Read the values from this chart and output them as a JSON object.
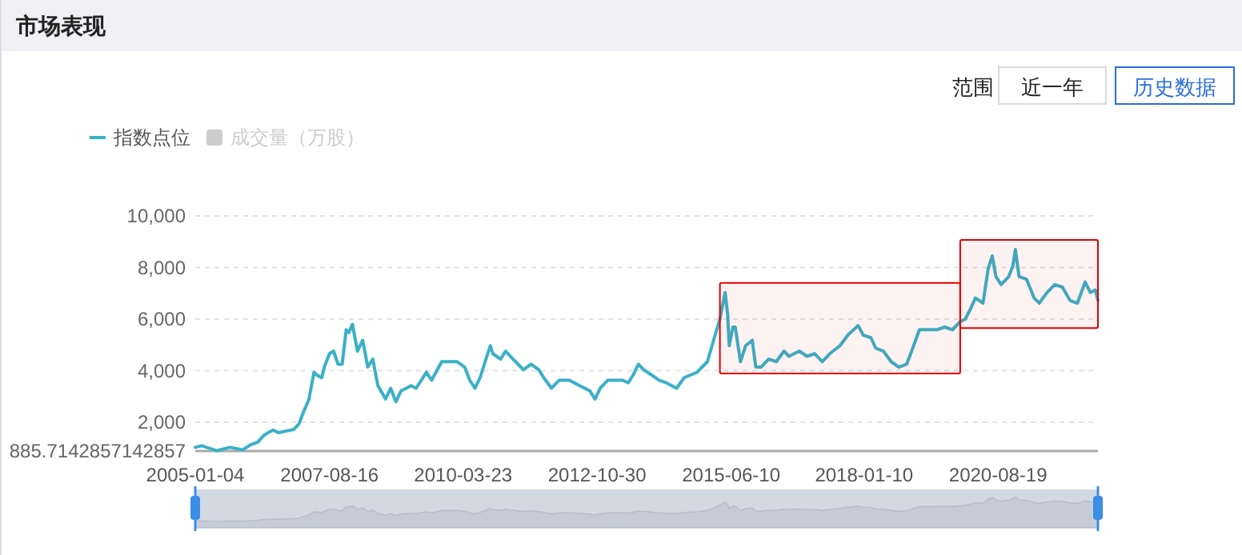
{
  "chart_data": {
    "type": "line",
    "title": "市场表现",
    "annotations": [
      "范围",
      "近一年",
      "历史数据"
    ],
    "x": [
      "2005-01-04",
      "2005-02-20",
      "2005-06-08",
      "2005-09-07",
      "2005-12-07",
      "2006-02-01",
      "2006-03-25",
      "2006-04-30",
      "2006-06-06",
      "2006-07-12",
      "2006-08-18",
      "2006-10-30",
      "2006-12-05",
      "2007-01-11",
      "2007-02-16",
      "2007-03-22",
      "2007-04-28",
      "2007-05-16",
      "2007-06-22",
      "2007-07-10",
      "2007-08-16",
      "2007-09-14",
      "2007-10-16",
      "2007-11-14",
      "2007-12-13",
      "2008-01-01",
      "2008-01-26",
      "2008-03-02",
      "2008-04-08",
      "2008-05-14",
      "2008-06-19",
      "2008-07-25",
      "2008-09-18",
      "2008-10-24",
      "2008-11-30",
      "2009-01-06",
      "2009-02-12",
      "2009-03-18",
      "2009-04-23",
      "2009-07-05",
      "2009-08-11",
      "2009-10-22",
      "2009-12-16",
      "2010-02-09",
      "2010-04-03",
      "2010-05-09",
      "2010-06-15",
      "2010-07-21",
      "2010-10-02",
      "2010-10-20",
      "2010-12-14",
      "2011-01-19",
      "2011-03-13",
      "2011-05-25",
      "2011-07-18",
      "2011-09-11",
      "2011-10-17",
      "2011-12-11",
      "2012-02-04",
      "2012-04-16",
      "2012-06-28",
      "2012-09-09",
      "2012-10-15",
      "2012-11-21",
      "2013-01-15",
      "2013-03-08",
      "2013-05-02",
      "2013-06-08",
      "2013-07-14",
      "2013-08-20",
      "2013-09-25",
      "2013-11-19",
      "2014-01-13",
      "2014-03-06",
      "2014-05-18",
      "2014-07-11",
      "2014-10-11",
      "2014-12-23",
      "2015-02-16",
      "2015-03-22",
      "2015-04-28",
      "2015-05-16",
      "2015-05-27",
      "2015-06-22",
      "2015-07-09",
      "2015-08-15",
      "2015-09-21",
      "2015-11-07",
      "2015-12-02",
      "2016-01-08",
      "2016-03-02",
      "2016-04-26",
      "2016-06-19",
      "2016-07-25",
      "2016-10-06",
      "2016-11-30",
      "2017-01-24",
      "2017-03-18",
      "2017-05-11",
      "2017-07-23",
      "2017-09-16",
      "2017-11-28",
      "2018-01-04",
      "2018-02-27",
      "2018-04-03",
      "2018-05-27",
      "2018-07-21",
      "2018-09-14",
      "2018-11-08",
      "2018-12-14",
      "2019-02-07",
      "2019-04-19",
      "2019-06-12",
      "2019-08-06",
      "2019-09-30",
      "2019-11-24",
      "2019-12-30",
      "2020-02-05",
      "2020-03-11",
      "2020-05-04",
      "2020-06-10",
      "2020-07-09",
      "2020-08-04",
      "2020-09-10",
      "2020-11-03",
      "2020-12-02",
      "2020-12-20",
      "2021-01-15",
      "2021-03-09",
      "2021-05-02",
      "2021-06-08",
      "2021-08-02",
      "2021-09-25",
      "2021-11-19",
      "2022-01-13",
      "2022-03-06",
      "2022-04-30",
      "2022-06-06",
      "2022-07-12",
      "2022-07-30"
    ],
    "series": [
      {
        "name": "指数点位",
        "color": "#3ab0c8",
        "values": [
          1030,
          1090,
          900,
          1030,
          930,
          1130,
          1230,
          1460,
          1600,
          1700,
          1600,
          1680,
          1720,
          1940,
          2450,
          2870,
          3940,
          3840,
          3730,
          4140,
          4660,
          4760,
          4250,
          4250,
          5590,
          5480,
          5800,
          4760,
          5180,
          4140,
          4450,
          3420,
          2900,
          3320,
          2800,
          3220,
          3320,
          3420,
          3320,
          3940,
          3630,
          4350,
          4350,
          4350,
          4140,
          3630,
          3320,
          3730,
          4970,
          4660,
          4450,
          4760,
          4450,
          4040,
          4250,
          4040,
          3730,
          3320,
          3630,
          3630,
          3420,
          3220,
          2900,
          3320,
          3630,
          3630,
          3630,
          3530,
          3840,
          4250,
          4040,
          3840,
          3630,
          3530,
          3320,
          3730,
          3940,
          4350,
          5380,
          6000,
          7030,
          6190,
          4970,
          5690,
          5690,
          4350,
          4970,
          5180,
          4140,
          4140,
          4450,
          4350,
          4760,
          4560,
          4760,
          4560,
          4660,
          4350,
          4660,
          4970,
          5380,
          5750,
          5380,
          5280,
          4870,
          4760,
          4350,
          4140,
          4250,
          4760,
          5590,
          5590,
          5590,
          5690,
          5590,
          5900,
          6000,
          6400,
          6820,
          6620,
          7960,
          8450,
          7650,
          7340,
          7650,
          8060,
          8700,
          7650,
          7550,
          6820,
          6620,
          7030,
          7340,
          7240,
          6720,
          6620,
          7440,
          7030,
          7130,
          6720
        ]
      },
      {
        "name": "成交量（万股）",
        "color": "#cccccc",
        "values": [
          null,
          null,
          null,
          null,
          null,
          null,
          null,
          null,
          null,
          null,
          null,
          null,
          null,
          null,
          null,
          null,
          null,
          null,
          null,
          null,
          null,
          null,
          null,
          null,
          null,
          null,
          null,
          null,
          null,
          null,
          null,
          null,
          null,
          null,
          null,
          null,
          null,
          null,
          null,
          null,
          null,
          null,
          null,
          null,
          null,
          null,
          null,
          null,
          null,
          null,
          null,
          null,
          null,
          null,
          null,
          null,
          null,
          null,
          null,
          null,
          null,
          null,
          null,
          null,
          null,
          null,
          null,
          null,
          null,
          null,
          null,
          null,
          null,
          null,
          null,
          null,
          null,
          null,
          null,
          null,
          null,
          null,
          null,
          null,
          null,
          null,
          null,
          null,
          null,
          null,
          null,
          null,
          null,
          null,
          null,
          null,
          null,
          null,
          null,
          null,
          null,
          null,
          null,
          null,
          null,
          null,
          null,
          null,
          null,
          null,
          null,
          null,
          null,
          null,
          null,
          null,
          null,
          null,
          null,
          null,
          null,
          null,
          null,
          null,
          null,
          null,
          null,
          null,
          null,
          null,
          null,
          null,
          null,
          null,
          null,
          null,
          null,
          null,
          null,
          null
        ]
      }
    ],
    "xlim": [
      "2005-01-04",
      "2022-07-30"
    ],
    "xticks": [
      "2005-01-04",
      "2007-08-16",
      "2010-03-23",
      "2012-10-30",
      "2015-06-10",
      "2018-01-10",
      "2020-08-19"
    ],
    "ylim": [
      885.7142857142857,
      10000
    ],
    "yticks": [
      {
        "value": 885.7142857142857,
        "label": "885.7142857142857"
      },
      {
        "value": 2000,
        "label": "2,000"
      },
      {
        "value": 4000,
        "label": "4,000"
      },
      {
        "value": 6000,
        "label": "6,000"
      },
      {
        "value": 8000,
        "label": "8,000"
      },
      {
        "value": 10000,
        "label": "10,000"
      }
    ],
    "grid": "y",
    "legend": "top left",
    "marker": "none",
    "line_style": "solid",
    "bands": [
      {
        "axis": "x",
        "from": "2015-03-22",
        "to": "2019-11-24",
        "color": "#e00000"
      },
      {
        "axis": "x",
        "from": "2019-11-24",
        "to": "2022-07-30",
        "color": "#e00000"
      }
    ]
  }
}
